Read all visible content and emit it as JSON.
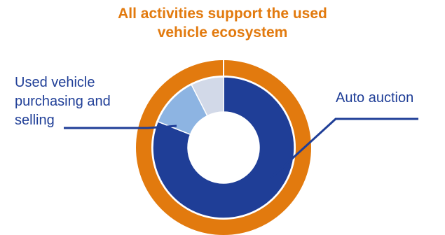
{
  "chart_data": {
    "type": "pie",
    "variant": "nested-donut",
    "title_lines": [
      "All activities support the used",
      "vehicle ecosystem"
    ],
    "outer_ring": {
      "slices": [
        {
          "value": 100,
          "color": "#E27A0E"
        }
      ]
    },
    "inner_ring": {
      "slices": [
        {
          "label": "Auto auction",
          "value": 81,
          "color": "#1F3E97"
        },
        {
          "label": "Used vehicle purchasing and selling",
          "value": 11.5,
          "color": "#8DB4E2"
        },
        {
          "label": "",
          "value": 7.5,
          "color": "#D2D9E8"
        }
      ]
    },
    "callouts": [
      {
        "lines": [
          "Used vehicle",
          "purchasing and",
          "selling"
        ],
        "target": "Used vehicle purchasing and selling",
        "color": "#1F3E97"
      },
      {
        "lines": [
          "Auto auction"
        ],
        "target": "Auto auction",
        "color": "#1F3E97"
      }
    ]
  }
}
